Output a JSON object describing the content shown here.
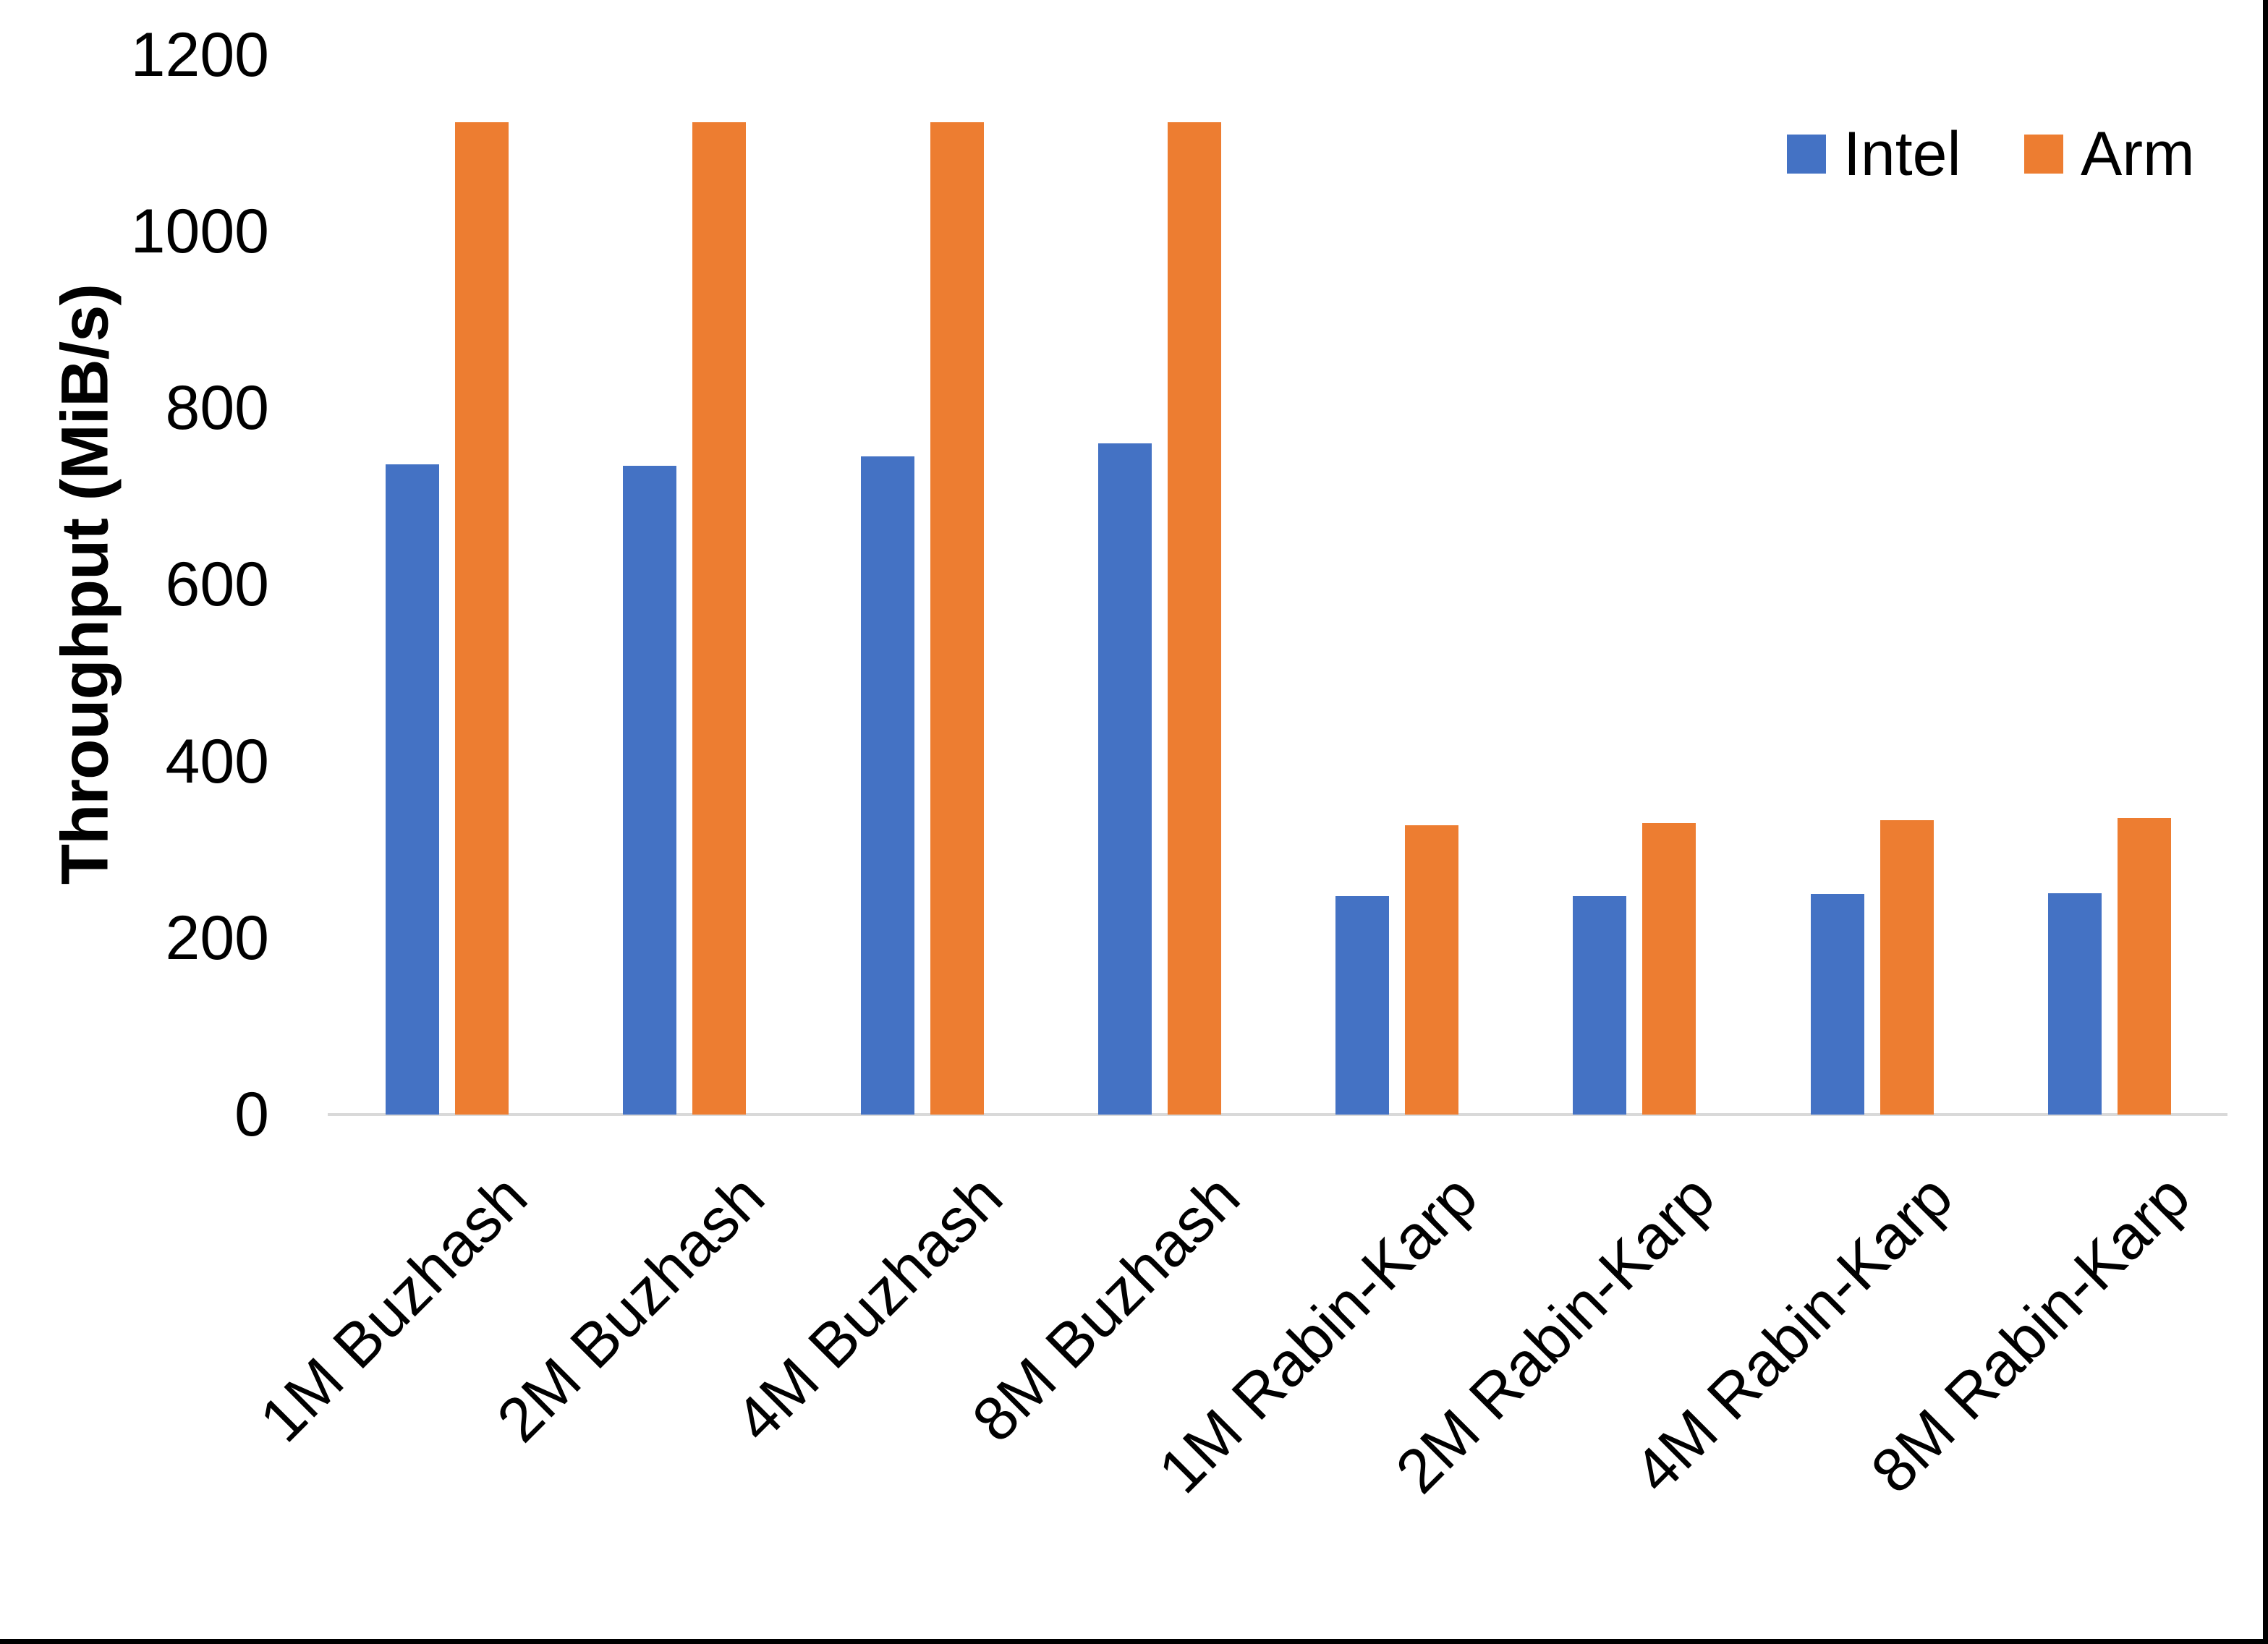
{
  "chart_data": {
    "type": "bar",
    "title": "",
    "xlabel": "",
    "ylabel": "Throughput (MiB/s)",
    "categories": [
      "1M Buzhash",
      "2M Buzhash",
      "4M Buzhash",
      "8M Buzhash",
      "1M Rabin-Karp",
      "2M Rabin-Karp",
      "4M Rabin-Karp",
      "8M Rabin-Karp"
    ],
    "series": [
      {
        "name": "Intel",
        "color": "#4472C4",
        "values": [
          736,
          735,
          745,
          760,
          247,
          247,
          250,
          251
        ]
      },
      {
        "name": "Arm",
        "color": "#ED7D31",
        "values": [
          1124,
          1124,
          1124,
          1124,
          328,
          330,
          333,
          336
        ]
      }
    ],
    "yticks": [
      0,
      200,
      400,
      600,
      800,
      1000,
      1200
    ],
    "ylim": [
      0,
      1200
    ],
    "grid": false,
    "legend_position": "top-right"
  },
  "legend": {
    "items": [
      {
        "label": "Intel",
        "color": "#4472C4"
      },
      {
        "label": "Arm",
        "color": "#ED7D31"
      }
    ]
  },
  "colors": {
    "axis_line": "#D9D9D9",
    "text": "#000000",
    "window_border": "#000000",
    "background": "#FFFFFF"
  }
}
